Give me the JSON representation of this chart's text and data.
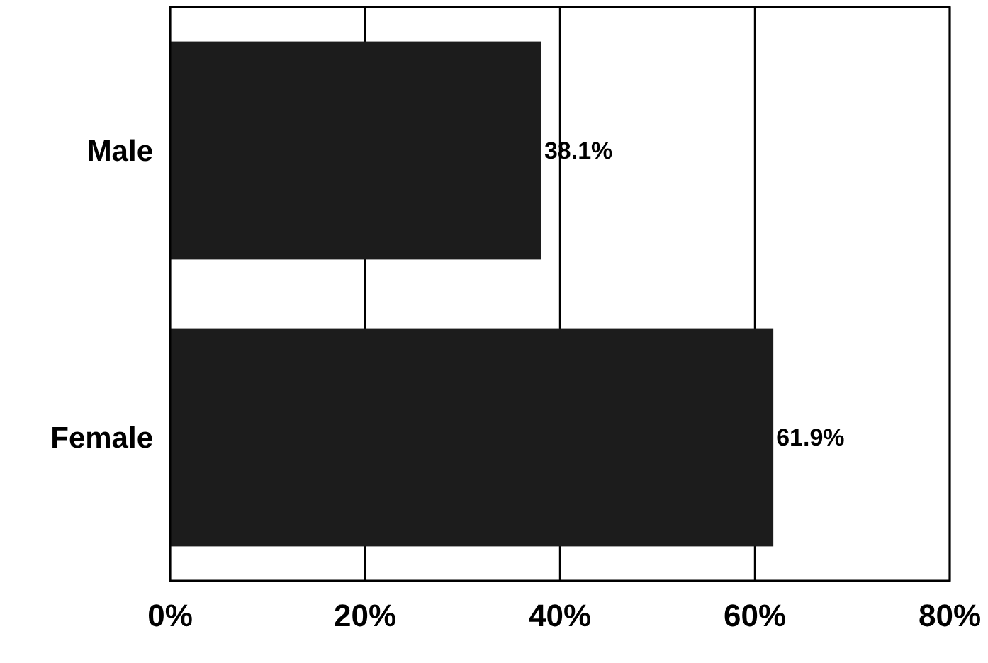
{
  "chart_data": {
    "type": "bar",
    "orientation": "horizontal",
    "categories": [
      "Male",
      "Female"
    ],
    "values": [
      38.1,
      61.9
    ],
    "color": "#1c1c1c",
    "value_labels": [
      "38.1%",
      "61.9%"
    ],
    "xlim": [
      0,
      80
    ],
    "xticks": [
      {
        "value": 0,
        "label": "0%"
      },
      {
        "value": 20,
        "label": "20%"
      },
      {
        "value": 40,
        "label": "40%"
      },
      {
        "value": 60,
        "label": "60%"
      },
      {
        "value": 80,
        "label": "80%"
      }
    ],
    "grid": "x"
  }
}
